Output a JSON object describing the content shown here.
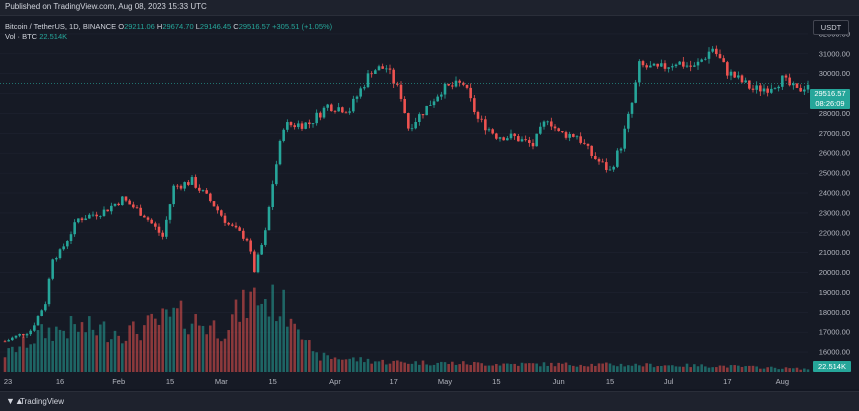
{
  "header": {
    "published": "Published on TradingView.com, Aug 08, 2023 15:33 UTC"
  },
  "legend": {
    "symbol": "Bitcoin / TetherUS, 1D, BINANCE",
    "o_key": "O",
    "o": "29211.06",
    "h_key": "H",
    "h": "29674.70",
    "l_key": "L",
    "l": "29146.45",
    "c_key": "C",
    "c": "29516.57",
    "change": "+305.51 (+1.05%)",
    "vol_label": "Vol · BTC",
    "vol_value": "22.514K"
  },
  "currency": "USDT",
  "price_badge": {
    "price": "29516.57",
    "countdown": "08:26:09"
  },
  "volume_badge": "22.514K",
  "footer": {
    "brand": "TradingView"
  },
  "colors": {
    "up": "#26a69a",
    "down": "#ef5350",
    "background": "#161a25"
  },
  "chart_data": {
    "type": "candlestick",
    "x_range": [
      "2023-01-01",
      "2023-08-08"
    ],
    "ylim": [
      15000,
      32800
    ],
    "y_ticks": [
      16000,
      17000,
      18000,
      19000,
      20000,
      21000,
      22000,
      23000,
      24000,
      25000,
      26000,
      27000,
      28000,
      29000,
      30000,
      31000,
      32000
    ],
    "y_tick_labels": [
      "16000.00",
      "17000.00",
      "18000.00",
      "19000.00",
      "20000.00",
      "21000.00",
      "22000.00",
      "23000.00",
      "24000.00",
      "25000.00",
      "26000.00",
      "27000.00",
      "28000.00",
      "29000.00",
      "30000.00",
      "31000.00",
      "32000.00"
    ],
    "x_ticks": [
      {
        "label": "23",
        "date": "2023-01-01"
      },
      {
        "label": "16",
        "date": "2023-01-16"
      },
      {
        "label": "Feb",
        "date": "2023-02-01"
      },
      {
        "label": "15",
        "date": "2023-02-15"
      },
      {
        "label": "Mar",
        "date": "2023-03-01"
      },
      {
        "label": "15",
        "date": "2023-03-15"
      },
      {
        "label": "Apr",
        "date": "2023-04-01"
      },
      {
        "label": "17",
        "date": "2023-04-17"
      },
      {
        "label": "May",
        "date": "2023-05-01"
      },
      {
        "label": "15",
        "date": "2023-05-15"
      },
      {
        "label": "Jun",
        "date": "2023-06-01"
      },
      {
        "label": "15",
        "date": "2023-06-15"
      },
      {
        "label": "Jul",
        "date": "2023-07-01"
      },
      {
        "label": "17",
        "date": "2023-07-17"
      },
      {
        "label": "Aug",
        "date": "2023-08-01"
      }
    ],
    "last_price": 29516.57,
    "price_path": [
      [
        "2023-01-01",
        16540
      ],
      [
        "2023-01-08",
        17100
      ],
      [
        "2023-01-12",
        18500
      ],
      [
        "2023-01-14",
        20800
      ],
      [
        "2023-01-16",
        21000
      ],
      [
        "2023-01-21",
        22700
      ],
      [
        "2023-01-28",
        23100
      ],
      [
        "2023-02-02",
        23700
      ],
      [
        "2023-02-08",
        22900
      ],
      [
        "2023-02-13",
        21800
      ],
      [
        "2023-02-16",
        24300
      ],
      [
        "2023-02-21",
        24600
      ],
      [
        "2023-02-27",
        23400
      ],
      [
        "2023-03-03",
        22400
      ],
      [
        "2023-03-08",
        21700
      ],
      [
        "2023-03-10",
        20100
      ],
      [
        "2023-03-13",
        22000
      ],
      [
        "2023-03-15",
        24500
      ],
      [
        "2023-03-18",
        27400
      ],
      [
        "2023-03-25",
        27500
      ],
      [
        "2023-03-30",
        28400
      ],
      [
        "2023-04-05",
        28200
      ],
      [
        "2023-04-11",
        30200
      ],
      [
        "2023-04-15",
        30300
      ],
      [
        "2023-04-19",
        28900
      ],
      [
        "2023-04-21",
        27300
      ],
      [
        "2023-04-26",
        28300
      ],
      [
        "2023-04-30",
        29200
      ],
      [
        "2023-05-06",
        29500
      ],
      [
        "2023-05-10",
        27700
      ],
      [
        "2023-05-15",
        26900
      ],
      [
        "2023-05-20",
        26800
      ],
      [
        "2023-05-25",
        26400
      ],
      [
        "2023-05-29",
        27800
      ],
      [
        "2023-06-01",
        27000
      ],
      [
        "2023-06-06",
        26900
      ],
      [
        "2023-06-10",
        25900
      ],
      [
        "2023-06-15",
        25100
      ],
      [
        "2023-06-18",
        26400
      ],
      [
        "2023-06-21",
        28500
      ],
      [
        "2023-06-23",
        30400
      ],
      [
        "2023-06-28",
        30200
      ],
      [
        "2023-07-03",
        30600
      ],
      [
        "2023-07-08",
        30300
      ],
      [
        "2023-07-13",
        31300
      ],
      [
        "2023-07-17",
        30100
      ],
      [
        "2023-07-24",
        29200
      ],
      [
        "2023-07-28",
        29300
      ],
      [
        "2023-08-01",
        29700
      ],
      [
        "2023-08-05",
        29100
      ],
      [
        "2023-08-08",
        29516.57
      ]
    ],
    "volume": {
      "series_name": "Vol · BTC",
      "last_value": "22.514K",
      "path_k": [
        [
          "2023-01-01",
          130
        ],
        [
          "2023-01-12",
          300
        ],
        [
          "2023-01-20",
          330
        ],
        [
          "2023-02-05",
          300
        ],
        [
          "2023-02-17",
          420
        ],
        [
          "2023-03-01",
          320
        ],
        [
          "2023-03-10",
          560
        ],
        [
          "2023-03-15",
          520
        ],
        [
          "2023-03-22",
          420
        ],
        [
          "2023-03-26",
          120
        ],
        [
          "2023-04-15",
          75
        ],
        [
          "2023-05-15",
          60
        ],
        [
          "2023-06-15",
          55
        ],
        [
          "2023-07-15",
          45
        ],
        [
          "2023-08-08",
          22.514
        ]
      ]
    }
  }
}
